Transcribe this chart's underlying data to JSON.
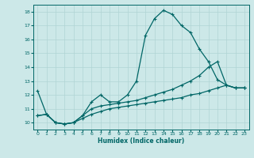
{
  "xlabel": "Humidex (Indice chaleur)",
  "x_ticks": [
    0,
    1,
    2,
    3,
    4,
    5,
    6,
    7,
    8,
    9,
    10,
    11,
    12,
    13,
    14,
    15,
    16,
    17,
    18,
    19,
    20,
    21,
    22,
    23
  ],
  "xlim": [
    -0.5,
    23.5
  ],
  "ylim": [
    9.5,
    18.5
  ],
  "y_ticks": [
    10,
    11,
    12,
    13,
    14,
    15,
    16,
    17,
    18
  ],
  "bg_color": "#cce8e8",
  "line_color": "#006666",
  "grid_color": "#b0d4d4",
  "line1_x": [
    0,
    1,
    2,
    3,
    4,
    5,
    6,
    7,
    8,
    9,
    10,
    11,
    12,
    13,
    14,
    15,
    16,
    17,
    18,
    19,
    20,
    21,
    22,
    23
  ],
  "line1_y": [
    12.3,
    10.6,
    10.0,
    9.9,
    10.0,
    10.5,
    11.5,
    12.0,
    11.5,
    11.5,
    12.0,
    13.0,
    16.3,
    17.5,
    18.1,
    17.8,
    17.0,
    16.5,
    15.3,
    14.4,
    13.1,
    12.7,
    12.5,
    12.5
  ],
  "line2_x": [
    0,
    1,
    2,
    3,
    4,
    5,
    6,
    7,
    8,
    9,
    10,
    11,
    12,
    13,
    14,
    15,
    16,
    17,
    18,
    19,
    20,
    21,
    22,
    23
  ],
  "line2_y": [
    10.5,
    10.6,
    10.0,
    9.9,
    10.0,
    10.5,
    11.0,
    11.2,
    11.3,
    11.4,
    11.5,
    11.6,
    11.8,
    12.0,
    12.2,
    12.4,
    12.7,
    13.0,
    13.4,
    14.0,
    14.4,
    12.7,
    12.5,
    12.5
  ],
  "line3_x": [
    0,
    1,
    2,
    3,
    4,
    5,
    6,
    7,
    8,
    9,
    10,
    11,
    12,
    13,
    14,
    15,
    16,
    17,
    18,
    19,
    20,
    21,
    22,
    23
  ],
  "line3_y": [
    10.5,
    10.6,
    10.0,
    9.9,
    10.0,
    10.3,
    10.6,
    10.8,
    11.0,
    11.1,
    11.2,
    11.3,
    11.4,
    11.5,
    11.6,
    11.7,
    11.8,
    12.0,
    12.1,
    12.3,
    12.5,
    12.7,
    12.5,
    12.5
  ]
}
